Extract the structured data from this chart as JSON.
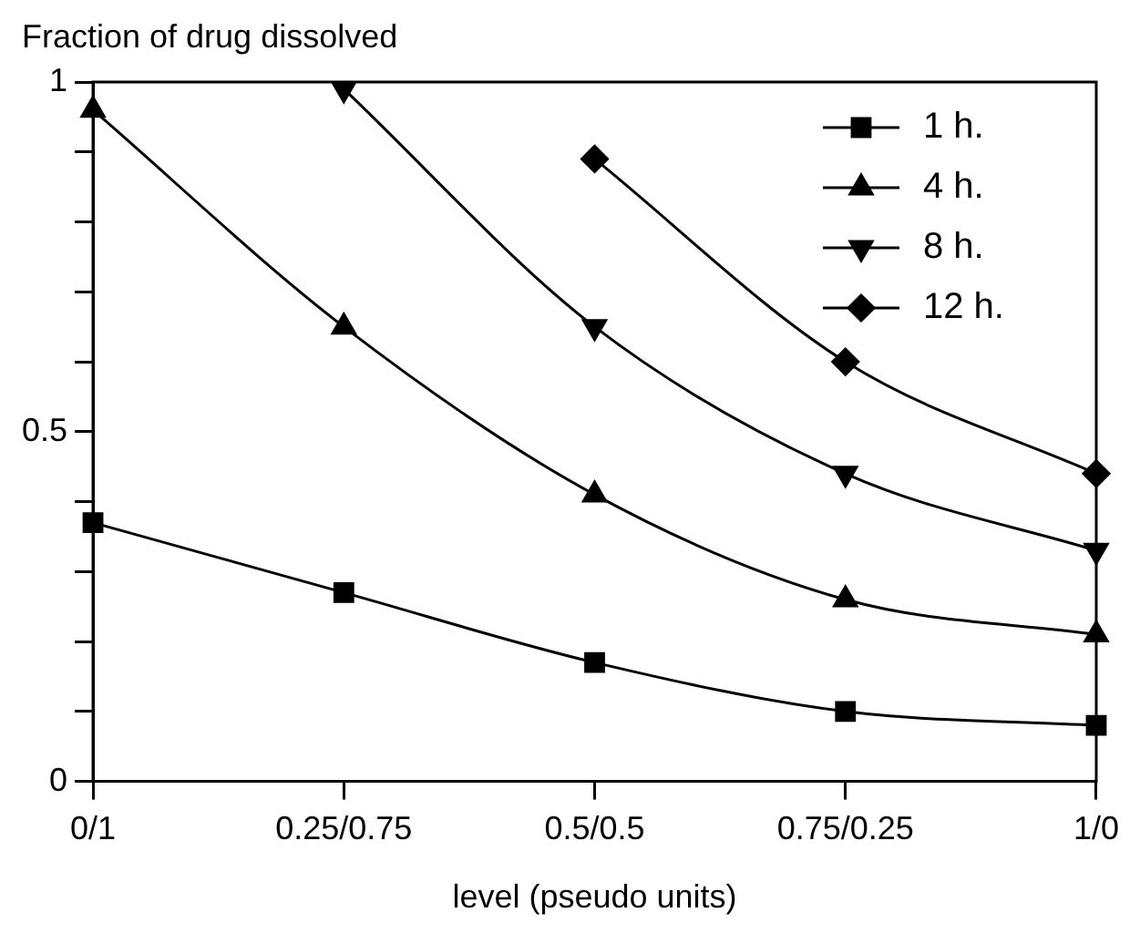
{
  "chart_data": {
    "type": "line",
    "ylabel": "Fraction of drug dissolved",
    "xlabel": "level (pseudo units)",
    "categories": [
      "0/1",
      "0.25/0.75",
      "0.5/0.5",
      "0.75/0.25",
      "1/0"
    ],
    "ylim": [
      0,
      1
    ],
    "yticks": [
      0,
      {
        "value": 0.1,
        "label": null
      },
      {
        "value": 0.2,
        "label": null
      },
      {
        "value": 0.3,
        "label": null
      },
      {
        "value": 0.4,
        "label": null
      },
      0.5,
      {
        "value": 0.6,
        "label": null
      },
      {
        "value": 0.7,
        "label": null
      },
      {
        "value": 0.8,
        "label": null
      },
      {
        "value": 0.9,
        "label": null
      },
      1
    ],
    "grid": false,
    "legend": "top right",
    "line_style": "solid",
    "series": [
      {
        "name": "1 h.",
        "color": "#000000",
        "marker": "square",
        "values": [
          0.37,
          0.27,
          0.17,
          0.1,
          0.08
        ]
      },
      {
        "name": "4 h.",
        "color": "#000000",
        "marker": "triangle",
        "values": [
          0.96,
          0.65,
          0.41,
          0.26,
          0.21
        ]
      },
      {
        "name": "8 h.",
        "color": "#000000",
        "marker": "triangle-down",
        "values": [
          null,
          0.99,
          0.65,
          0.44,
          0.33
        ]
      },
      {
        "name": "12 h.",
        "color": "#000000",
        "marker": "diamond",
        "values": [
          null,
          null,
          0.89,
          0.6,
          0.44
        ]
      }
    ]
  }
}
